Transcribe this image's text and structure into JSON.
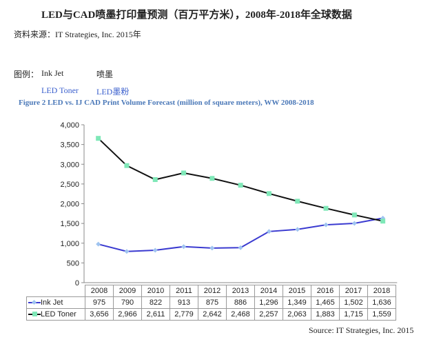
{
  "header": {
    "title": "LED与CAD喷墨打印量预测（百万平方米），2008年-2018年全球数据",
    "source_cn": "资料来源：IT Strategies, Inc. 2015年"
  },
  "legend_note": {
    "label": "图例：",
    "items": [
      {
        "en": "Ink Jet",
        "cn": "喷墨"
      },
      {
        "en": "LED Toner",
        "cn": "LED墨粉"
      }
    ]
  },
  "chart_data": {
    "type": "line",
    "title": "Figure 2    LED vs. IJ CAD Print Volume Forecast (million of square meters), WW 2008-2018",
    "categories": [
      "2008",
      "2009",
      "2010",
      "2011",
      "2012",
      "2013",
      "2014",
      "2015",
      "2016",
      "2017",
      "2018"
    ],
    "ylim": [
      0,
      4000
    ],
    "yticks": [
      "0",
      "500",
      "1,000",
      "1,500",
      "2,000",
      "2,500",
      "3,000",
      "3,500",
      "4,000"
    ],
    "grid": false,
    "legend": "data-table",
    "series": [
      {
        "name": "Ink Jet",
        "color": "#3a3ad0",
        "marker_color": "#9fc4f0",
        "values": [
          975,
          790,
          822,
          913,
          875,
          886,
          1296,
          1349,
          1465,
          1502,
          1636
        ],
        "labels": [
          "975",
          "790",
          "822",
          "913",
          "875",
          "886",
          "1,296",
          "1,349",
          "1,465",
          "1,502",
          "1,636"
        ]
      },
      {
        "name": "LED Toner",
        "color": "#111111",
        "marker_color": "#7fe8b8",
        "values": [
          3656,
          2966,
          2611,
          2779,
          2642,
          2468,
          2257,
          2063,
          1883,
          1715,
          1559
        ],
        "labels": [
          "3,656",
          "2,966",
          "2,611",
          "2,779",
          "2,642",
          "2,468",
          "2,257",
          "2,063",
          "1,883",
          "1,715",
          "1,559"
        ]
      }
    ],
    "source": "Source: IT Strategies, Inc. 2015"
  }
}
